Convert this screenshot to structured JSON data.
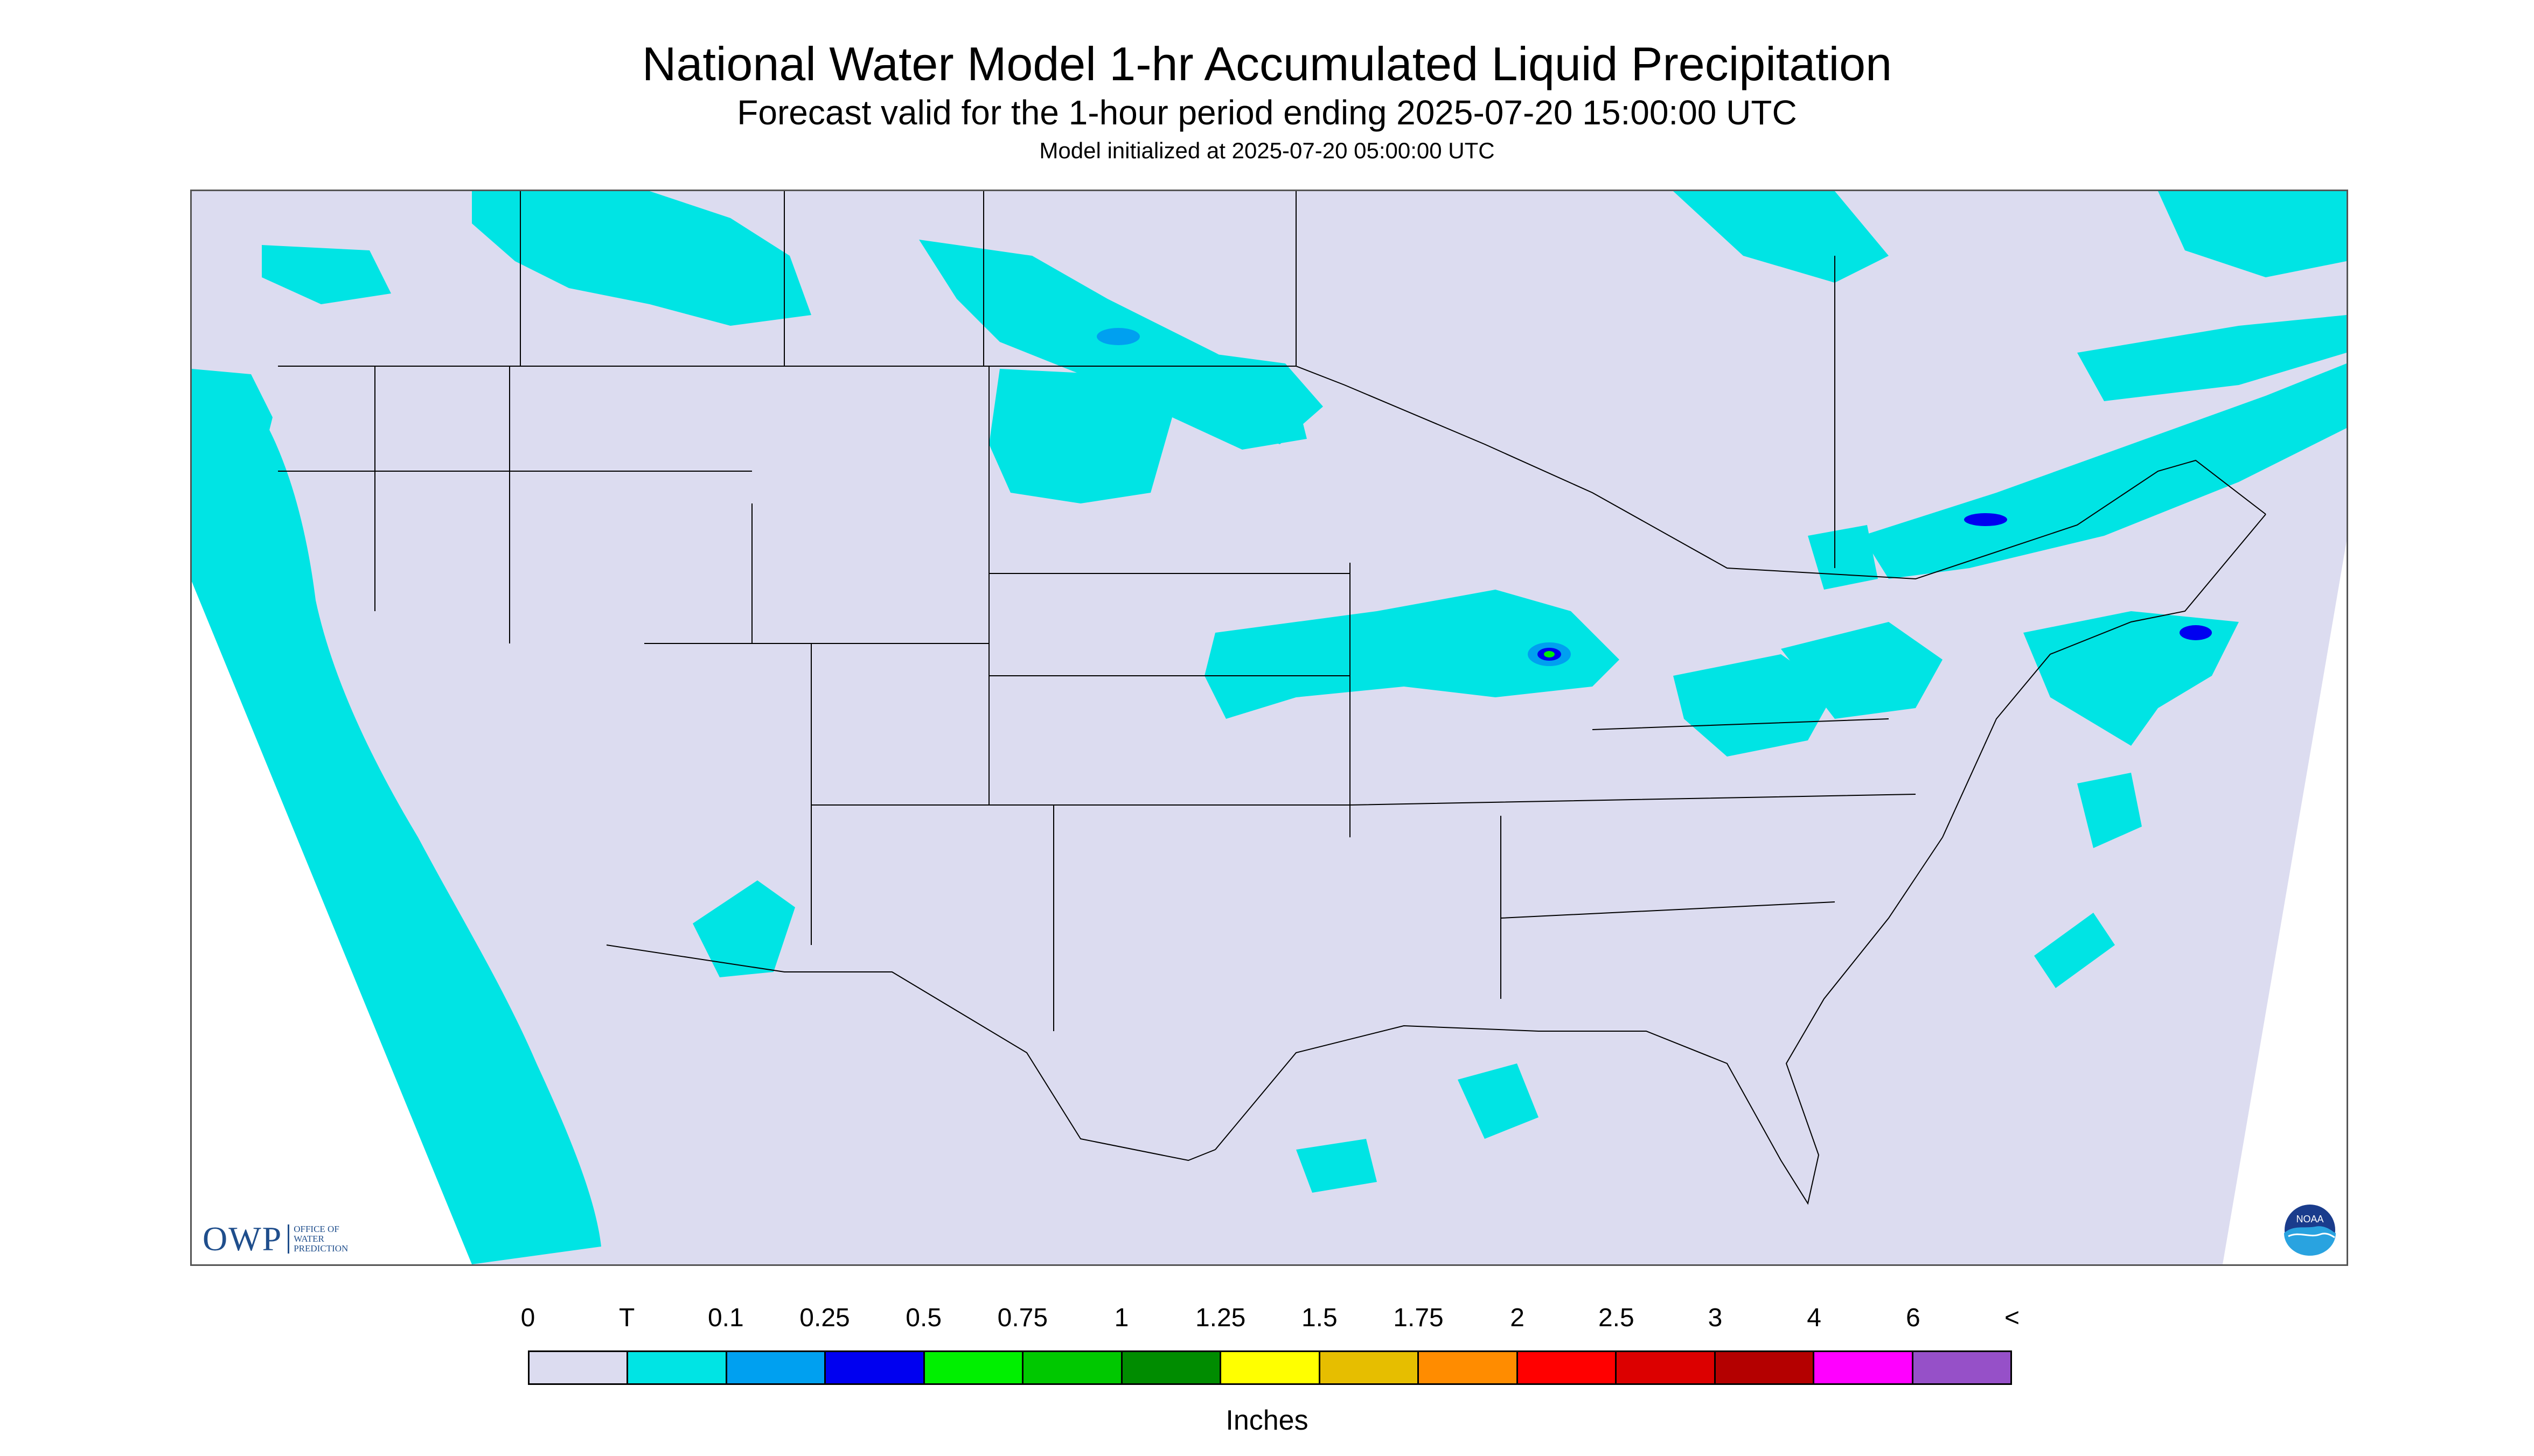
{
  "header": {
    "title": "National Water Model 1-hr Accumulated Liquid Precipitation",
    "subtitle": "Forecast valid for the 1-hour period ending 2025-07-20 15:00:00 UTC",
    "init": "Model initialized at 2025-07-20 05:00:00 UTC"
  },
  "logos": {
    "owp": {
      "letters": "OWP",
      "line1": "OFFICE OF",
      "line2": "WATER",
      "line3": "PREDICTION"
    },
    "noaa": {
      "text": "NOAA"
    }
  },
  "colors": {
    "background_no_precip": "#dcdcf0",
    "outside_domain": "#ffffff",
    "boundary_lines": "#000000",
    "trace": "#00e4e4",
    "logo_blue": "#1f4e8c"
  },
  "legend": {
    "units": "Inches",
    "labels": [
      "0",
      "T",
      "0.1",
      "0.25",
      "0.5",
      "0.75",
      "1",
      "1.25",
      "1.5",
      "1.75",
      "2",
      "2.5",
      "3",
      "4",
      "6",
      "<"
    ],
    "colors": [
      "#dcdcf0",
      "#00e4e4",
      "#00a0f0",
      "#0000f0",
      "#00f000",
      "#00c800",
      "#008c00",
      "#ffff00",
      "#e6be00",
      "#ff8c00",
      "#ff0000",
      "#dc0000",
      "#b40000",
      "#ff00ff",
      "#9650c8"
    ]
  }
}
